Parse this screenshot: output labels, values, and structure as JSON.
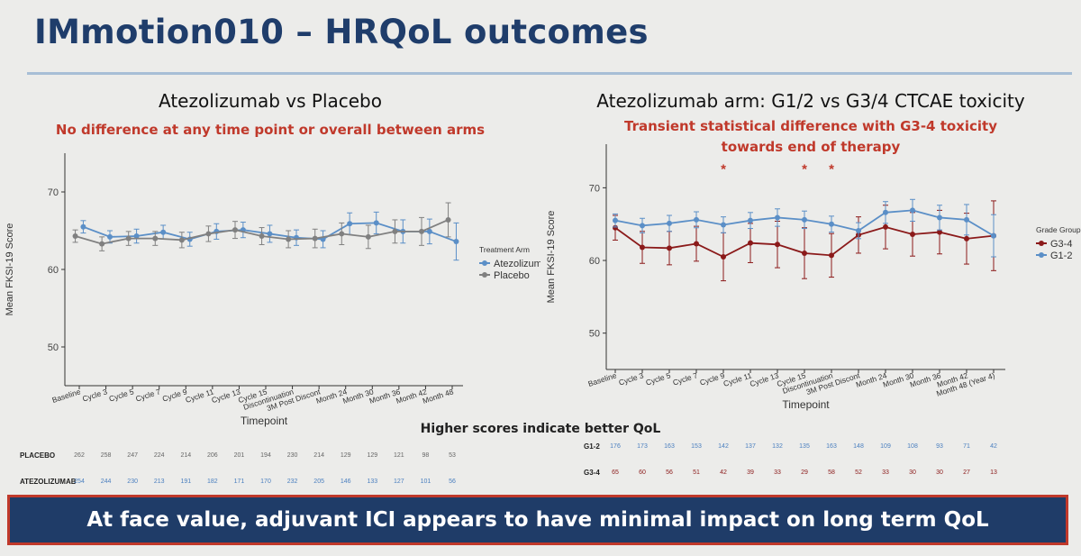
{
  "header": {
    "title": "IMmotion010 – HRQoL outcomes"
  },
  "left_panel": {
    "title": "Atezolizumab vs Placebo",
    "subtitle": "No difference at any time point or overall between arms"
  },
  "right_panel": {
    "title": "Atezolizumab arm: G1/2 vs G3/4 CTCAE toxicity",
    "subtitle_line1": "Transient statistical difference with G3-4 toxicity",
    "subtitle_line2": "towards end of therapy"
  },
  "footer": {
    "note": "Higher scores indicate better QoL",
    "banner": "At face value, adjuvant ICI appears to have minimal impact on long term QoL"
  },
  "colors": {
    "blue": "#5b8fc7",
    "grey": "#808080",
    "red": "#8b1a1a",
    "title_blue": "#1f3d6b",
    "accent_red": "#c0392b"
  },
  "chart_data": [
    {
      "type": "line",
      "xlabel": "Timepoint",
      "ylabel": "Mean FKSI-19 Score",
      "ylim": [
        45,
        75
      ],
      "yticks": [
        50,
        60,
        70
      ],
      "categories": [
        "Baseline",
        "Cycle 3",
        "Cycle 5",
        "Cycle 7",
        "Cycle 9",
        "Cycle 11",
        "Cycle 13",
        "Cycle 15",
        "Discontinuation",
        "3M Post Discont",
        "Month 24",
        "Month 30",
        "Month 36",
        "Month 42",
        "Month 48"
      ],
      "legend_title": "Treatment Arm",
      "legend_position": "right",
      "series": [
        {
          "name": "Atezolizumab",
          "color": "#5b8fc7",
          "values": [
            65.5,
            64.2,
            64.3,
            64.8,
            63.9,
            64.9,
            65.1,
            64.6,
            64.1,
            63.9,
            65.9,
            66.0,
            64.9,
            64.9,
            63.6
          ],
          "err": [
            0.8,
            0.8,
            0.9,
            0.9,
            0.9,
            1.0,
            1.0,
            1.1,
            1.0,
            1.1,
            1.4,
            1.4,
            1.5,
            1.6,
            2.4
          ]
        },
        {
          "name": "Placebo",
          "color": "#808080",
          "values": [
            64.3,
            63.3,
            64.0,
            64.0,
            63.8,
            64.6,
            65.1,
            64.3,
            63.9,
            64.0,
            64.6,
            64.2,
            64.9,
            64.9,
            66.4
          ],
          "err": [
            0.8,
            0.9,
            0.9,
            0.9,
            1.0,
            1.0,
            1.1,
            1.1,
            1.1,
            1.2,
            1.4,
            1.5,
            1.5,
            1.8,
            2.2
          ]
        }
      ],
      "counts": [
        {
          "label": "PLACEBO",
          "values": [
            "262",
            "258",
            "247",
            "224",
            "214",
            "206",
            "201",
            "194",
            "230",
            "214",
            "129",
            "129",
            "121",
            "98",
            "53"
          ]
        },
        {
          "label": "ATEZOLIZUMAB",
          "values": [
            "254",
            "244",
            "230",
            "213",
            "191",
            "182",
            "171",
            "170",
            "232",
            "205",
            "146",
            "133",
            "127",
            "101",
            "56"
          ]
        }
      ]
    },
    {
      "type": "line",
      "xlabel": "Timepoint",
      "ylabel": "Mean FKSI-19 Score",
      "ylim": [
        45,
        76
      ],
      "yticks": [
        50,
        60,
        70
      ],
      "categories": [
        "Baseline",
        "Cycle 3",
        "Cycle 5",
        "Cycle 7",
        "Cycle 9",
        "Cycle 11",
        "Cycle 13",
        "Cycle 15",
        "Discontinuation",
        "3M Post Discont",
        "Month 24",
        "Month 30",
        "Month 36",
        "Month 42",
        "Month 48 (Year 4)"
      ],
      "legend_title": "Grade Group",
      "legend_position": "right",
      "significant": [
        4,
        7,
        8
      ],
      "series": [
        {
          "name": "G3-4",
          "color": "#8b1a1a",
          "values": [
            64.5,
            61.8,
            61.7,
            62.3,
            60.5,
            62.4,
            62.2,
            61.0,
            60.7,
            63.5,
            64.6,
            63.6,
            63.9,
            63.0,
            63.4
          ],
          "err": [
            1.7,
            2.2,
            2.3,
            2.4,
            3.3,
            2.7,
            3.2,
            3.5,
            3.0,
            2.5,
            3.0,
            3.0,
            3.0,
            3.5,
            4.8
          ]
        },
        {
          "name": "G1-2",
          "color": "#5b8fc7",
          "values": [
            65.5,
            64.8,
            65.1,
            65.6,
            64.9,
            65.5,
            65.9,
            65.6,
            65.0,
            64.1,
            66.6,
            66.9,
            65.9,
            65.6,
            63.4
          ],
          "err": [
            0.9,
            1.0,
            1.1,
            1.1,
            1.1,
            1.1,
            1.2,
            1.2,
            1.1,
            1.1,
            1.5,
            1.5,
            1.7,
            2.1,
            2.9
          ]
        }
      ],
      "counts": [
        {
          "label": "G1-2",
          "values": [
            "176",
            "173",
            "163",
            "153",
            "142",
            "137",
            "132",
            "135",
            "163",
            "148",
            "109",
            "108",
            "93",
            "71",
            "42"
          ]
        },
        {
          "label": "G3-4",
          "values": [
            "65",
            "60",
            "56",
            "51",
            "42",
            "39",
            "33",
            "29",
            "58",
            "52",
            "33",
            "30",
            "30",
            "27",
            "13"
          ]
        }
      ]
    }
  ]
}
